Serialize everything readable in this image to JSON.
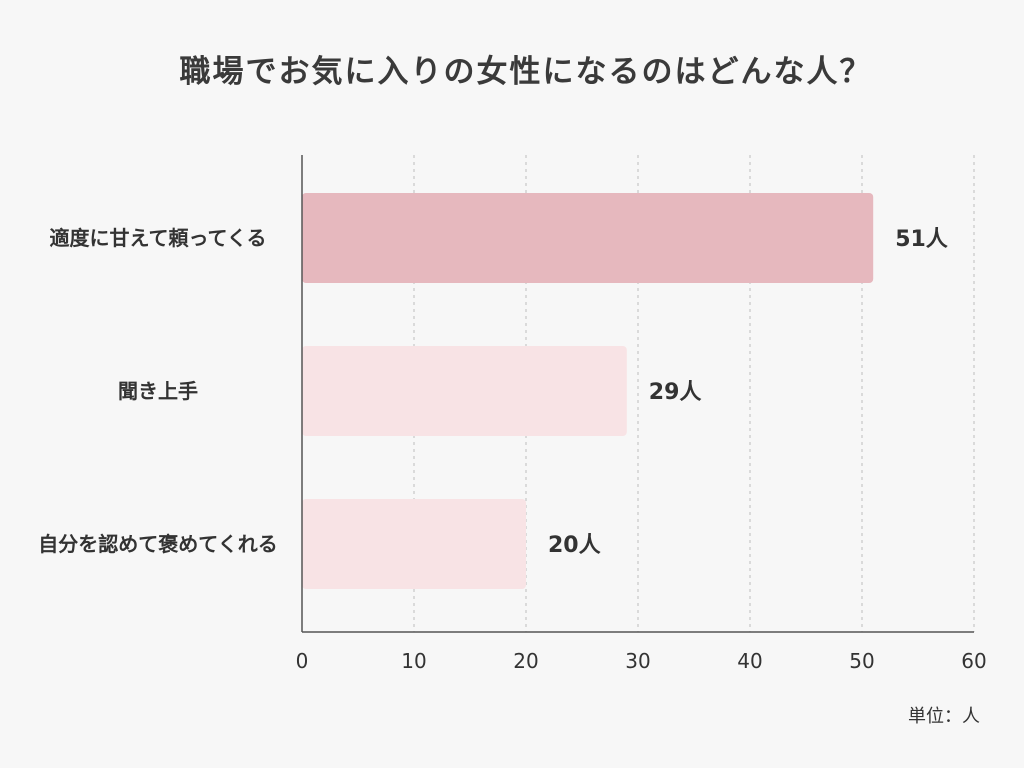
{
  "chart_data": {
    "type": "bar",
    "orientation": "horizontal",
    "title": "職場でお気に入りの女性になるのはどんな人？",
    "categories": [
      "適度に甘えて頼ってくる",
      "聞き上手",
      "自分を認めて褒めてくれる"
    ],
    "values": [
      51,
      29,
      20
    ],
    "value_labels": [
      "51人",
      "29人",
      "20人"
    ],
    "xlim": [
      0,
      60
    ],
    "x_ticks": [
      "0",
      "10",
      "20",
      "30",
      "40",
      "50",
      "60"
    ],
    "unit_note": "単位：人",
    "grid": "vertical dashed",
    "legend": "none",
    "colors": [
      "#e6b8be",
      "#f8e3e5",
      "#f8e3e5"
    ]
  }
}
